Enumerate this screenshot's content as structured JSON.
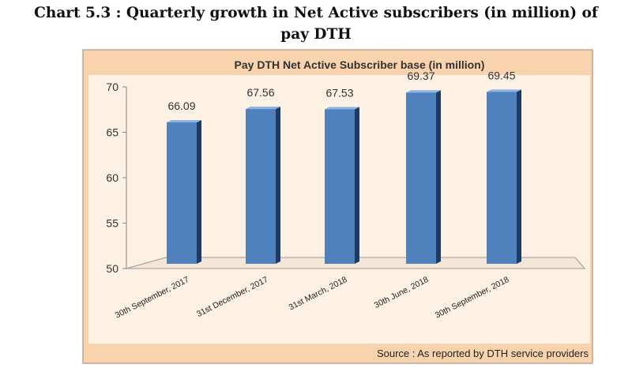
{
  "heading": {
    "line1": "Chart 5.3 : Quarterly growth in Net Active subscribers (in million) of",
    "line2": "pay DTH"
  },
  "chart_data": {
    "type": "bar",
    "title": "Pay DTH Net Active Subscriber base (in million)",
    "categories": [
      "30th September, 2017",
      "31st December, 2017",
      "31st March, 2018",
      "30th June, 2018",
      "30th September, 2018"
    ],
    "values": [
      66.09,
      67.56,
      67.53,
      69.37,
      69.45
    ],
    "data_labels": [
      "66.09",
      "67.56",
      "67.53",
      "69.37",
      "69.45"
    ],
    "ylim": [
      50,
      70
    ],
    "yticks": [
      "50",
      "55",
      "60",
      "65",
      "70"
    ],
    "xlabel": "",
    "ylabel": "",
    "grid": false,
    "bar_color": "#4f81bd",
    "source": "Source : As reported by DTH service providers"
  }
}
